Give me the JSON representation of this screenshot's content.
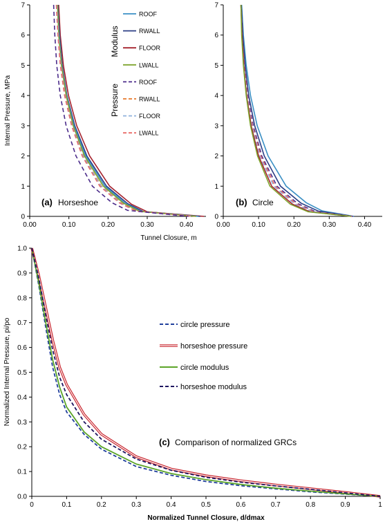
{
  "chart_data": [
    {
      "type": "line",
      "panel_label": "(a)",
      "panel_name": "Horseshoe",
      "xlabel": "Tunnel Closure, m",
      "ylabel": "Internal Pressure, MPa",
      "xlim": [
        0,
        0.45
      ],
      "ylim": [
        0,
        7
      ],
      "x_ticks": [
        "0.00",
        "0.10",
        "0.20",
        "0.30",
        "0.40"
      ],
      "y_ticks": [
        "0",
        "1",
        "2",
        "3",
        "4",
        "5",
        "6",
        "7"
      ],
      "legend": {
        "groups": [
          "Modulus",
          "Pressure"
        ],
        "entries": [
          {
            "label": "ROOF",
            "group": "Modulus",
            "color": "#3A8FC4",
            "dash": "solid"
          },
          {
            "label": "RWALL",
            "group": "Modulus",
            "color": "#2B3E85",
            "dash": "solid"
          },
          {
            "label": "FLOOR",
            "group": "Modulus",
            "color": "#A5222D",
            "dash": "solid"
          },
          {
            "label": "LWALL",
            "group": "Modulus",
            "color": "#7EA42E",
            "dash": "solid"
          },
          {
            "label": "ROOF",
            "group": "Pressure",
            "color": "#4B2B8A",
            "dash": "dashed"
          },
          {
            "label": "RWALL",
            "group": "Pressure",
            "color": "#E8782A",
            "dash": "dashed"
          },
          {
            "label": "FLOOR",
            "group": "Pressure",
            "color": "#8FB2DC",
            "dash": "dashed"
          },
          {
            "label": "LWALL",
            "group": "Pressure",
            "color": "#E86A66",
            "dash": "dashed"
          }
        ]
      },
      "series": [
        {
          "color": "#A5222D",
          "dash": "solid",
          "points": [
            [
              0.074,
              7
            ],
            [
              0.078,
              6
            ],
            [
              0.086,
              5
            ],
            [
              0.099,
              4
            ],
            [
              0.12,
              3
            ],
            [
              0.153,
              2
            ],
            [
              0.204,
              1
            ],
            [
              0.26,
              0.4
            ],
            [
              0.3,
              0.15
            ],
            [
              0.445,
              0
            ]
          ]
        },
        {
          "color": "#2B3E85",
          "dash": "solid",
          "points": [
            [
              0.072,
              7
            ],
            [
              0.076,
              6
            ],
            [
              0.083,
              5
            ],
            [
              0.095,
              4
            ],
            [
              0.115,
              3
            ],
            [
              0.146,
              2
            ],
            [
              0.196,
              1
            ],
            [
              0.25,
              0.42
            ],
            [
              0.29,
              0.16
            ],
            [
              0.435,
              0
            ]
          ]
        },
        {
          "color": "#3A8FC4",
          "dash": "solid",
          "points": [
            [
              0.071,
              7
            ],
            [
              0.075,
              6
            ],
            [
              0.082,
              5
            ],
            [
              0.094,
              4
            ],
            [
              0.113,
              3
            ],
            [
              0.143,
              2
            ],
            [
              0.192,
              1
            ],
            [
              0.245,
              0.42
            ],
            [
              0.285,
              0.16
            ],
            [
              0.43,
              0
            ]
          ]
        },
        {
          "color": "#7EA42E",
          "dash": "solid",
          "points": [
            [
              0.071,
              7
            ],
            [
              0.074,
              6
            ],
            [
              0.081,
              5
            ],
            [
              0.093,
              4
            ],
            [
              0.111,
              3
            ],
            [
              0.14,
              2
            ],
            [
              0.188,
              1
            ],
            [
              0.24,
              0.43
            ],
            [
              0.28,
              0.17
            ],
            [
              0.425,
              0
            ]
          ]
        },
        {
          "color": "#E8782A",
          "dash": "dashed",
          "points": [
            [
              0.069,
              7
            ],
            [
              0.073,
              6
            ],
            [
              0.08,
              5
            ],
            [
              0.091,
              4
            ],
            [
              0.109,
              3
            ],
            [
              0.137,
              2
            ],
            [
              0.183,
              1
            ],
            [
              0.235,
              0.43
            ],
            [
              0.275,
              0.17
            ],
            [
              0.42,
              0
            ]
          ]
        },
        {
          "color": "#8FB2DC",
          "dash": "dashed",
          "points": [
            [
              0.069,
              7
            ],
            [
              0.073,
              6
            ],
            [
              0.079,
              5
            ],
            [
              0.09,
              4
            ],
            [
              0.108,
              3
            ],
            [
              0.136,
              2
            ],
            [
              0.182,
              1
            ],
            [
              0.233,
              0.43
            ],
            [
              0.273,
              0.17
            ],
            [
              0.418,
              0
            ]
          ]
        },
        {
          "color": "#E86A66",
          "dash": "dashed",
          "points": [
            [
              0.068,
              7
            ],
            [
              0.072,
              6
            ],
            [
              0.078,
              5
            ],
            [
              0.089,
              4
            ],
            [
              0.107,
              3
            ],
            [
              0.134,
              2
            ],
            [
              0.179,
              1
            ],
            [
              0.23,
              0.44
            ],
            [
              0.27,
              0.18
            ],
            [
              0.415,
              0
            ]
          ]
        },
        {
          "color": "#4B2B8A",
          "dash": "dashed",
          "points": [
            [
              0.061,
              7
            ],
            [
              0.064,
              6
            ],
            [
              0.069,
              5
            ],
            [
              0.078,
              4
            ],
            [
              0.093,
              3
            ],
            [
              0.118,
              2
            ],
            [
              0.16,
              1
            ],
            [
              0.21,
              0.45
            ],
            [
              0.25,
              0.2
            ],
            [
              0.405,
              0
            ]
          ]
        }
      ]
    },
    {
      "type": "line",
      "panel_label": "(b)",
      "panel_name": "Circle",
      "xlim": [
        0,
        0.45
      ],
      "ylim": [
        0,
        7
      ],
      "x_ticks": [
        "0.00",
        "0.10",
        "0.20",
        "0.30",
        "0.40"
      ],
      "y_ticks": [
        "0",
        "1",
        "2",
        "3",
        "4",
        "5",
        "6",
        "7"
      ],
      "series": [
        {
          "color": "#3A8FC4",
          "dash": "solid",
          "points": [
            [
              0.052,
              7
            ],
            [
              0.057,
              6
            ],
            [
              0.065,
              5
            ],
            [
              0.077,
              4
            ],
            [
              0.096,
              3
            ],
            [
              0.127,
              2
            ],
            [
              0.178,
              1
            ],
            [
              0.235,
              0.45
            ],
            [
              0.28,
              0.18
            ],
            [
              0.37,
              0
            ]
          ]
        },
        {
          "color": "#2B3E85",
          "dash": "solid",
          "points": [
            [
              0.051,
              7
            ],
            [
              0.055,
              6
            ],
            [
              0.062,
              5
            ],
            [
              0.072,
              4
            ],
            [
              0.089,
              3
            ],
            [
              0.116,
              2
            ],
            [
              0.162,
              1
            ],
            [
              0.22,
              0.44
            ],
            [
              0.27,
              0.17
            ],
            [
              0.368,
              0
            ]
          ]
        },
        {
          "color": "#4B2B8A",
          "dash": "dashed",
          "points": [
            [
              0.05,
              7
            ],
            [
              0.054,
              6
            ],
            [
              0.06,
              5
            ],
            [
              0.069,
              4
            ],
            [
              0.085,
              3
            ],
            [
              0.109,
              2
            ],
            [
              0.152,
              1
            ],
            [
              0.21,
              0.43
            ],
            [
              0.26,
              0.16
            ],
            [
              0.366,
              0
            ]
          ]
        },
        {
          "color": "#E86A66",
          "dash": "dashed",
          "points": [
            [
              0.05,
              7
            ],
            [
              0.053,
              6
            ],
            [
              0.059,
              5
            ],
            [
              0.068,
              4
            ],
            [
              0.083,
              3
            ],
            [
              0.106,
              2
            ],
            [
              0.147,
              1
            ],
            [
              0.205,
              0.42
            ],
            [
              0.255,
              0.16
            ],
            [
              0.365,
              0
            ]
          ]
        },
        {
          "color": "#8FB2DC",
          "dash": "dashed",
          "points": [
            [
              0.05,
              7
            ],
            [
              0.053,
              6
            ],
            [
              0.058,
              5
            ],
            [
              0.067,
              4
            ],
            [
              0.081,
              3
            ],
            [
              0.103,
              2
            ],
            [
              0.143,
              1
            ],
            [
              0.2,
              0.42
            ],
            [
              0.25,
              0.16
            ],
            [
              0.364,
              0
            ]
          ]
        },
        {
          "color": "#A5222D",
          "dash": "solid",
          "points": [
            [
              0.05,
              7
            ],
            [
              0.053,
              6
            ],
            [
              0.058,
              5
            ],
            [
              0.066,
              4
            ],
            [
              0.079,
              3
            ],
            [
              0.1,
              2
            ],
            [
              0.137,
              1
            ],
            [
              0.195,
              0.41
            ],
            [
              0.245,
              0.15
            ],
            [
              0.363,
              0
            ]
          ]
        },
        {
          "color": "#7EA42E",
          "dash": "solid",
          "points": [
            [
              0.05,
              7
            ],
            [
              0.052,
              6
            ],
            [
              0.057,
              5
            ],
            [
              0.065,
              4
            ],
            [
              0.077,
              3
            ],
            [
              0.097,
              2
            ],
            [
              0.132,
              1
            ],
            [
              0.19,
              0.4
            ],
            [
              0.24,
              0.15
            ],
            [
              0.362,
              0
            ]
          ]
        }
      ]
    },
    {
      "type": "line",
      "panel_label": "(c)",
      "panel_name": "Comparison of normalized GRCs",
      "xlabel": "Normalized Tunnel Closure,   d/dmax",
      "ylabel": "Normalized Internal Pressure,  pi/po",
      "xlim": [
        0,
        1
      ],
      "ylim": [
        0,
        1
      ],
      "x_ticks": [
        "0",
        "0.1",
        "0.2",
        "0.3",
        "0.4",
        "0.5",
        "0.6",
        "0.7",
        "0.8",
        "0.9",
        "1"
      ],
      "y_ticks": [
        "0.0",
        "0.1",
        "0.2",
        "0.3",
        "0.4",
        "0.5",
        "0.6",
        "0.7",
        "0.8",
        "0.9",
        "1.0"
      ],
      "series": [
        {
          "name": "circle pressure",
          "color": "#1F3E9C",
          "dash": "dashed",
          "points": [
            [
              0,
              1
            ],
            [
              0.02,
              0.85
            ],
            [
              0.04,
              0.68
            ],
            [
              0.06,
              0.52
            ],
            [
              0.08,
              0.41
            ],
            [
              0.1,
              0.34
            ],
            [
              0.15,
              0.25
            ],
            [
              0.2,
              0.19
            ],
            [
              0.3,
              0.12
            ],
            [
              0.4,
              0.085
            ],
            [
              0.5,
              0.06
            ],
            [
              0.6,
              0.043
            ],
            [
              0.7,
              0.03
            ],
            [
              0.8,
              0.018
            ],
            [
              0.9,
              0.009
            ],
            [
              1,
              0
            ]
          ]
        },
        {
          "name": "horseshoe pressure",
          "color": "#C8232C",
          "dash": "double",
          "points": [
            [
              0,
              1
            ],
            [
              0.02,
              0.89
            ],
            [
              0.04,
              0.76
            ],
            [
              0.06,
              0.63
            ],
            [
              0.08,
              0.52
            ],
            [
              0.1,
              0.45
            ],
            [
              0.15,
              0.33
            ],
            [
              0.2,
              0.25
            ],
            [
              0.3,
              0.16
            ],
            [
              0.4,
              0.11
            ],
            [
              0.5,
              0.083
            ],
            [
              0.6,
              0.063
            ],
            [
              0.7,
              0.046
            ],
            [
              0.8,
              0.031
            ],
            [
              0.9,
              0.016
            ],
            [
              1,
              0
            ]
          ]
        },
        {
          "name": "circle modulus",
          "color": "#5BA428",
          "dash": "solid",
          "points": [
            [
              0,
              1
            ],
            [
              0.02,
              0.86
            ],
            [
              0.04,
              0.7
            ],
            [
              0.06,
              0.55
            ],
            [
              0.08,
              0.44
            ],
            [
              0.1,
              0.36
            ],
            [
              0.15,
              0.26
            ],
            [
              0.2,
              0.2
            ],
            [
              0.3,
              0.13
            ],
            [
              0.4,
              0.092
            ],
            [
              0.5,
              0.067
            ],
            [
              0.6,
              0.048
            ],
            [
              0.7,
              0.033
            ],
            [
              0.8,
              0.021
            ],
            [
              0.9,
              0.01
            ],
            [
              1,
              0
            ]
          ]
        },
        {
          "name": "horseshoe modulus",
          "color": "#1E1660",
          "dash": "dashed",
          "points": [
            [
              0,
              1
            ],
            [
              0.02,
              0.88
            ],
            [
              0.04,
              0.73
            ],
            [
              0.06,
              0.59
            ],
            [
              0.08,
              0.48
            ],
            [
              0.1,
              0.41
            ],
            [
              0.15,
              0.3
            ],
            [
              0.2,
              0.23
            ],
            [
              0.3,
              0.15
            ],
            [
              0.4,
              0.105
            ],
            [
              0.5,
              0.077
            ],
            [
              0.6,
              0.057
            ],
            [
              0.7,
              0.042
            ],
            [
              0.8,
              0.028
            ],
            [
              0.9,
              0.014
            ],
            [
              1,
              0
            ]
          ]
        }
      ]
    }
  ]
}
